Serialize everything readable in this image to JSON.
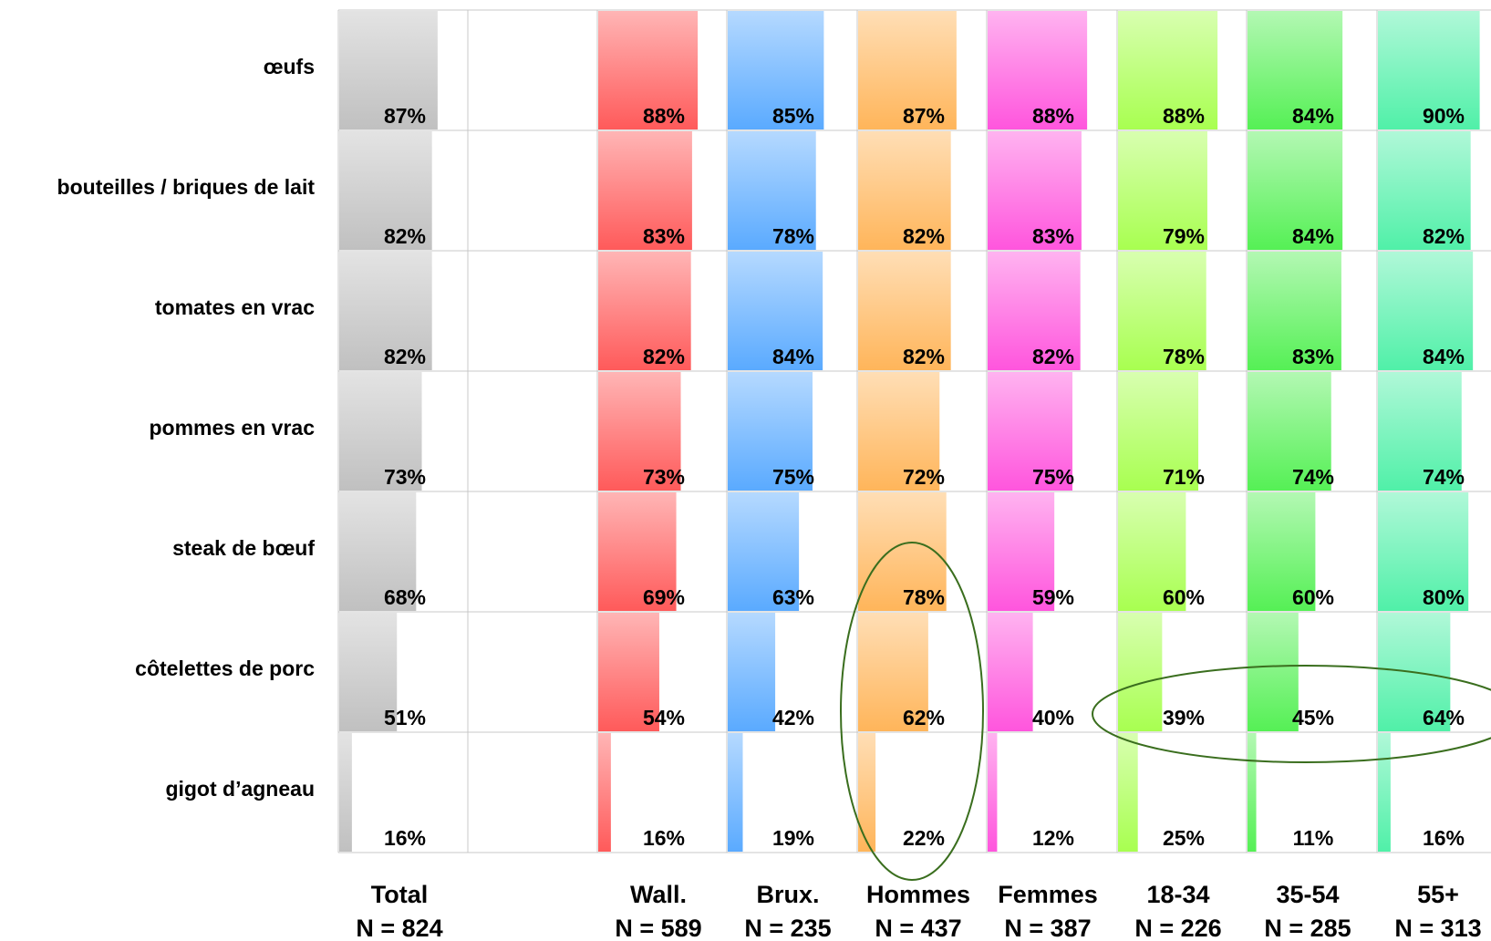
{
  "chart_data": {
    "type": "bar",
    "orientation": "horizontal-within-cells",
    "value_unit": "%",
    "xlim": [
      0,
      100
    ],
    "grid": true,
    "categories": [
      "œufs",
      "bouteilles / briques de lait",
      "tomates en vrac",
      "pommes en vrac",
      "steak de bœuf",
      "côtelettes de porc",
      "gigot d’agneau"
    ],
    "series": [
      {
        "name": "Total",
        "n_label": "N = 824",
        "color": "#c0c0c0",
        "values": [
          87,
          82,
          82,
          73,
          68,
          51,
          16
        ]
      },
      {
        "name": "Wall.",
        "n_label": "N = 589",
        "color": "#ff5a5a",
        "values": [
          88,
          83,
          82,
          73,
          69,
          54,
          16
        ]
      },
      {
        "name": "Brux.",
        "n_label": "N = 235",
        "color": "#5aaaff",
        "values": [
          85,
          78,
          84,
          75,
          63,
          42,
          19
        ]
      },
      {
        "name": "Hommes",
        "n_label": "N = 437",
        "color": "#ffb55a",
        "values": [
          87,
          82,
          82,
          72,
          78,
          62,
          22
        ]
      },
      {
        "name": "Femmes",
        "n_label": "N = 387",
        "color": "#ff55dd",
        "values": [
          88,
          83,
          82,
          75,
          59,
          40,
          12
        ]
      },
      {
        "name": "18-34",
        "n_label": "N = 226",
        "color": "#a8ff50",
        "values": [
          88,
          79,
          78,
          71,
          60,
          39,
          25
        ]
      },
      {
        "name": "35-54",
        "n_label": "N = 285",
        "color": "#55f055",
        "values": [
          84,
          84,
          83,
          74,
          60,
          45,
          11
        ]
      },
      {
        "name": "55+",
        "n_label": "N = 313",
        "color": "#50f0a8",
        "values": [
          90,
          82,
          84,
          74,
          80,
          64,
          16
        ]
      }
    ],
    "highlights": [
      {
        "type": "ellipse",
        "color": "#3a6e1e"
      },
      {
        "type": "ellipse",
        "color": "#3a6e1e"
      }
    ]
  }
}
